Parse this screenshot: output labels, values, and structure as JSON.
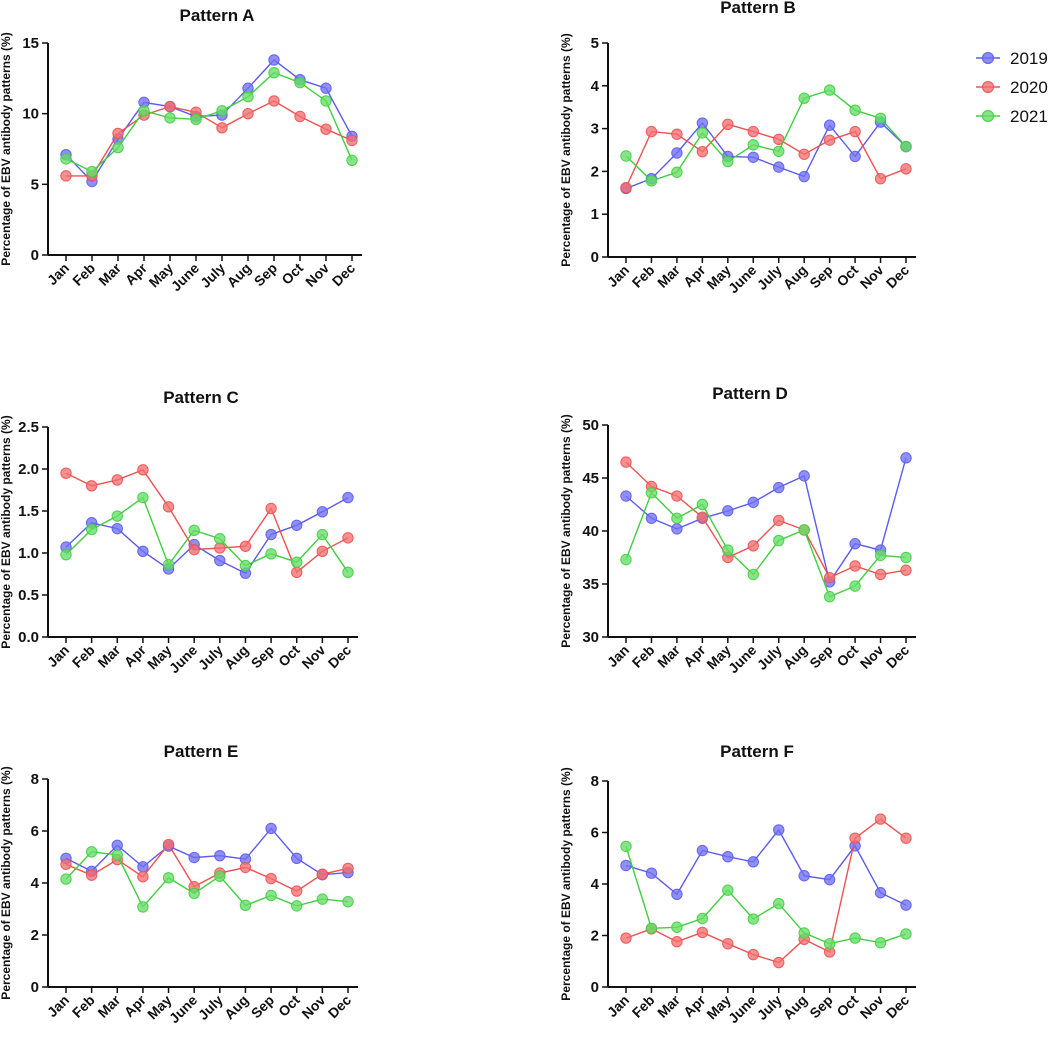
{
  "legend": [
    {
      "name": "2019",
      "color": "#5b5bf0",
      "fill": "#7070f5"
    },
    {
      "name": "2020",
      "color": "#f05050",
      "fill": "#f47070"
    },
    {
      "name": "2021",
      "color": "#3fcf3f",
      "fill": "#66dd66"
    }
  ],
  "chart_data": [
    {
      "type": "line",
      "title": "Pattern A",
      "ylabel": "Percentage of EBV antibody patterns (%)",
      "xlabel": "",
      "ylim": [
        0,
        15
      ],
      "yticks": [
        "0",
        "5",
        "10",
        "15"
      ],
      "categories": [
        "Jan",
        "Feb",
        "Mar",
        "Apr",
        "May",
        "June",
        "July",
        "Aug",
        "Sep",
        "Oct",
        "Nov",
        "Dec"
      ],
      "series": [
        {
          "name": "2019",
          "values": [
            7.1,
            5.2,
            8.2,
            10.8,
            10.5,
            9.8,
            9.9,
            11.8,
            13.8,
            12.4,
            11.8,
            8.4
          ]
        },
        {
          "name": "2020",
          "values": [
            5.6,
            5.6,
            8.6,
            9.9,
            10.5,
            10.1,
            9.0,
            10.0,
            10.9,
            9.8,
            8.9,
            8.1
          ]
        },
        {
          "name": "2021",
          "values": [
            6.8,
            5.9,
            7.6,
            10.2,
            9.7,
            9.6,
            10.2,
            11.2,
            12.9,
            12.2,
            10.9,
            6.7
          ]
        }
      ]
    },
    {
      "type": "line",
      "title": "Pattern B",
      "ylabel": "Percentage of EBV antibody patterns (%)",
      "xlabel": "",
      "ylim": [
        0,
        5
      ],
      "yticks": [
        "0",
        "1",
        "2",
        "3",
        "4",
        "5"
      ],
      "categories": [
        "Jan",
        "Feb",
        "Mar",
        "Apr",
        "May",
        "June",
        "July",
        "Aug",
        "Sep",
        "Oct",
        "Nov",
        "Dec"
      ],
      "series": [
        {
          "name": "2019",
          "values": [
            1.6,
            1.83,
            2.43,
            3.13,
            2.35,
            2.33,
            2.1,
            1.88,
            3.08,
            2.35,
            3.15,
            2.58
          ]
        },
        {
          "name": "2020",
          "values": [
            1.62,
            2.93,
            2.87,
            2.46,
            3.1,
            2.93,
            2.75,
            2.4,
            2.73,
            2.93,
            1.83,
            2.06
          ]
        },
        {
          "name": "2021",
          "values": [
            2.36,
            1.78,
            1.98,
            2.9,
            2.23,
            2.62,
            2.47,
            3.71,
            3.9,
            3.43,
            3.24,
            2.58
          ]
        }
      ]
    },
    {
      "type": "line",
      "title": "Pattern C",
      "ylabel": "Percentage of EBV antibody patterns (%)",
      "xlabel": "",
      "ylim": [
        0,
        2.5
      ],
      "yticks": [
        "0.0",
        "0.5",
        "1.0",
        "1.5",
        "2.0",
        "2.5"
      ],
      "categories": [
        "Jan",
        "Feb",
        "Mar",
        "Apr",
        "May",
        "June",
        "July",
        "Aug",
        "Sep",
        "Oct",
        "Nov",
        "Dec"
      ],
      "series": [
        {
          "name": "2019",
          "values": [
            1.07,
            1.36,
            1.29,
            1.02,
            0.81,
            1.1,
            0.91,
            0.76,
            1.22,
            1.33,
            1.49,
            1.66
          ]
        },
        {
          "name": "2020",
          "values": [
            1.95,
            1.8,
            1.87,
            1.99,
            1.55,
            1.04,
            1.06,
            1.08,
            1.53,
            0.77,
            1.02,
            1.18
          ]
        },
        {
          "name": "2021",
          "values": [
            0.98,
            1.28,
            1.44,
            1.66,
            0.86,
            1.27,
            1.17,
            0.85,
            0.99,
            0.89,
            1.22,
            0.77
          ]
        }
      ]
    },
    {
      "type": "line",
      "title": "Pattern D",
      "ylabel": "Percentage of EBV antibody patterns (%)",
      "xlabel": "",
      "ylim": [
        30,
        50
      ],
      "yticks": [
        "30",
        "35",
        "40",
        "45",
        "50"
      ],
      "categories": [
        "Jan",
        "Feb",
        "Mar",
        "Apr",
        "May",
        "June",
        "July",
        "Aug",
        "Sep",
        "Oct",
        "Nov",
        "Dec"
      ],
      "series": [
        {
          "name": "2019",
          "values": [
            43.3,
            41.2,
            40.2,
            41.2,
            41.9,
            42.7,
            44.1,
            45.2,
            35.2,
            38.8,
            38.2,
            46.9
          ]
        },
        {
          "name": "2020",
          "values": [
            46.5,
            44.2,
            43.3,
            41.3,
            37.5,
            38.6,
            41.0,
            40.1,
            35.6,
            36.7,
            35.9,
            36.3
          ]
        },
        {
          "name": "2021",
          "values": [
            37.3,
            43.6,
            41.2,
            42.5,
            38.2,
            35.9,
            39.1,
            40.1,
            33.8,
            34.8,
            37.7,
            37.5
          ]
        }
      ]
    },
    {
      "type": "line",
      "title": "Pattern E",
      "ylabel": "Percentage of EBV antibody patterns (%)",
      "xlabel": "",
      "ylim": [
        0,
        8
      ],
      "yticks": [
        "0",
        "2",
        "4",
        "6",
        "8"
      ],
      "categories": [
        "Jan",
        "Feb",
        "Mar",
        "Apr",
        "May",
        "June",
        "July",
        "Aug",
        "Sep",
        "Oct",
        "Nov",
        "Dec"
      ],
      "series": [
        {
          "name": "2019",
          "values": [
            4.95,
            4.45,
            5.45,
            4.62,
            5.42,
            4.98,
            5.05,
            4.92,
            6.1,
            4.95,
            4.32,
            4.4
          ]
        },
        {
          "name": "2020",
          "values": [
            4.72,
            4.3,
            4.9,
            4.24,
            5.48,
            3.86,
            4.38,
            4.6,
            4.17,
            3.69,
            4.34,
            4.56
          ]
        },
        {
          "name": "2021",
          "values": [
            4.15,
            5.2,
            5.08,
            3.08,
            4.2,
            3.6,
            4.26,
            3.14,
            3.52,
            3.12,
            3.38,
            3.28
          ]
        }
      ]
    },
    {
      "type": "line",
      "title": "Pattern F",
      "ylabel": "Percentage of EBV antibody patterns (%)",
      "xlabel": "",
      "ylim": [
        0,
        8
      ],
      "yticks": [
        "0",
        "2",
        "4",
        "6",
        "8"
      ],
      "categories": [
        "Jan",
        "Feb",
        "Mar",
        "Apr",
        "May",
        "June",
        "July",
        "Aug",
        "Sep",
        "Oct",
        "Nov",
        "Dec"
      ],
      "series": [
        {
          "name": "2019",
          "values": [
            4.72,
            4.42,
            3.6,
            5.3,
            5.06,
            4.86,
            6.1,
            4.32,
            4.17,
            5.48,
            3.66,
            3.18
          ]
        },
        {
          "name": "2020",
          "values": [
            1.9,
            2.26,
            1.76,
            2.12,
            1.68,
            1.26,
            0.95,
            1.85,
            1.36,
            5.78,
            6.52,
            5.78
          ]
        },
        {
          "name": "2021",
          "values": [
            5.46,
            2.28,
            2.32,
            2.66,
            3.76,
            2.64,
            3.24,
            2.1,
            1.68,
            1.9,
            1.72,
            2.06
          ]
        }
      ]
    }
  ]
}
